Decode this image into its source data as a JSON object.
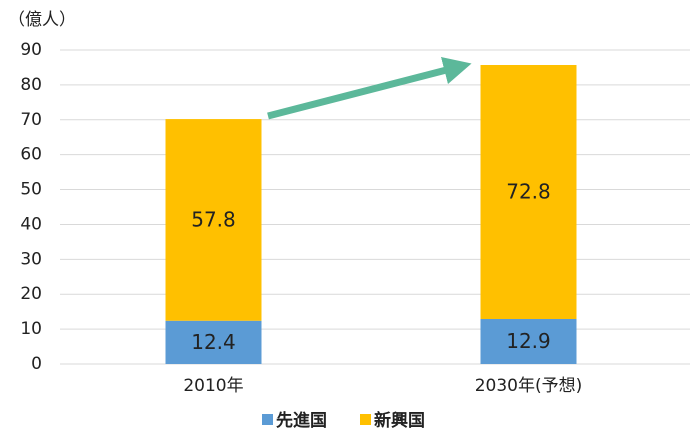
{
  "chart_data": {
    "type": "bar",
    "stacked": true,
    "unit_label": "（億人）",
    "categories": [
      "2010年",
      "2030年(予想)"
    ],
    "series": [
      {
        "name": "先進国",
        "color": "#5b9bd5",
        "values": [
          12.4,
          12.9
        ]
      },
      {
        "name": "新興国",
        "color": "#ffc000",
        "values": [
          57.8,
          72.8
        ]
      }
    ],
    "ylim": [
      0,
      90
    ],
    "yticks": [
      0,
      10,
      20,
      30,
      40,
      50,
      60,
      70,
      80,
      90
    ],
    "grid": true
  }
}
